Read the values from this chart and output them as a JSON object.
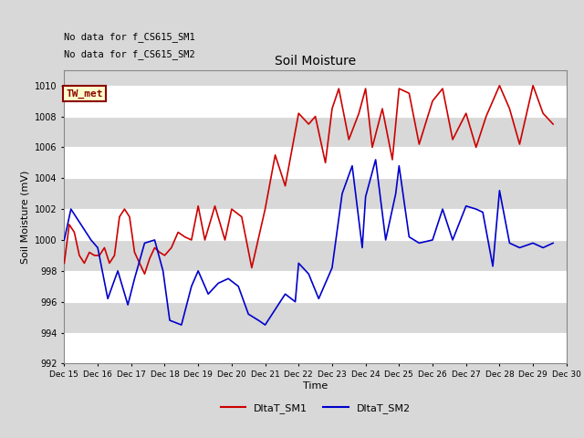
{
  "title": "Soil Moisture",
  "ylabel": "Soil Moisture (mV)",
  "xlabel": "Time",
  "ylim": [
    992,
    1011
  ],
  "yticks": [
    992,
    994,
    996,
    998,
    1000,
    1002,
    1004,
    1006,
    1008,
    1010
  ],
  "bg_color": "#d8d8d8",
  "plot_bg_color": "#d8d8d8",
  "grid_color": "white",
  "note1": "No data for f_CS615_SM1",
  "note2": "No data for f_CS615_SM2",
  "legend_box_label": "TW_met",
  "legend_box_color": "#ffffcc",
  "legend_box_border": "#8b0000",
  "sm1_color": "#cc0000",
  "sm2_color": "#0000cc",
  "sm1_x": [
    15.0,
    15.15,
    15.3,
    15.45,
    15.6,
    15.75,
    15.9,
    16.05,
    16.2,
    16.35,
    16.5,
    16.65,
    16.8,
    16.95,
    17.1,
    17.25,
    17.4,
    17.55,
    17.7,
    17.85,
    18.0,
    18.2,
    18.4,
    18.6,
    18.8,
    19.0,
    19.2,
    19.5,
    19.8,
    20.0,
    20.3,
    20.6,
    21.0,
    21.3,
    21.6,
    22.0,
    22.3,
    22.5,
    22.8,
    23.0,
    23.2,
    23.5,
    23.8,
    24.0,
    24.2,
    24.5,
    24.8,
    25.0,
    25.3,
    25.6,
    26.0,
    26.3,
    26.6,
    27.0,
    27.3,
    27.6,
    28.0,
    28.3,
    28.6,
    29.0,
    29.3,
    29.6
  ],
  "sm1_y": [
    998.5,
    1001.0,
    1000.5,
    999.0,
    998.5,
    999.2,
    999.0,
    999.0,
    999.5,
    998.5,
    999.0,
    1001.5,
    1002.0,
    1001.5,
    999.2,
    998.5,
    997.8,
    998.8,
    999.5,
    999.2,
    999.0,
    999.5,
    1000.5,
    1000.2,
    1000.0,
    1002.2,
    1000.0,
    1002.2,
    1000.0,
    1002.0,
    1001.5,
    998.2,
    1002.0,
    1005.5,
    1003.5,
    1008.2,
    1007.5,
    1008.0,
    1005.0,
    1008.5,
    1009.8,
    1006.5,
    1008.2,
    1009.8,
    1006.0,
    1008.5,
    1005.2,
    1009.8,
    1009.5,
    1006.2,
    1009.0,
    1009.8,
    1006.5,
    1008.2,
    1006.0,
    1008.0,
    1010.0,
    1008.5,
    1006.2,
    1010.0,
    1008.2,
    1007.5
  ],
  "sm2_x": [
    15.0,
    15.2,
    15.5,
    15.8,
    16.0,
    16.3,
    16.6,
    16.9,
    17.1,
    17.4,
    17.7,
    17.95,
    18.15,
    18.5,
    18.8,
    19.0,
    19.3,
    19.6,
    19.9,
    20.2,
    20.5,
    20.8,
    21.0,
    21.3,
    21.6,
    21.9,
    22.0,
    22.3,
    22.6,
    23.0,
    23.3,
    23.6,
    23.9,
    24.0,
    24.3,
    24.6,
    24.9,
    25.0,
    25.3,
    25.6,
    26.0,
    26.3,
    26.6,
    27.0,
    27.3,
    27.5,
    27.8,
    28.0,
    28.3,
    28.6,
    29.0,
    29.3,
    29.6
  ],
  "sm2_y": [
    1000.0,
    1002.0,
    1001.0,
    1000.0,
    999.5,
    996.2,
    998.0,
    995.8,
    997.5,
    999.8,
    1000.0,
    998.0,
    994.8,
    994.5,
    997.0,
    998.0,
    996.5,
    997.2,
    997.5,
    997.0,
    995.2,
    994.8,
    994.5,
    995.5,
    996.5,
    996.0,
    998.5,
    997.8,
    996.2,
    998.2,
    1003.0,
    1004.8,
    999.5,
    1002.8,
    1005.2,
    1000.0,
    1003.0,
    1004.8,
    1000.2,
    999.8,
    1000.0,
    1002.0,
    1000.0,
    1002.2,
    1002.0,
    1001.8,
    998.3,
    1003.2,
    999.8,
    999.5,
    999.8,
    999.5,
    999.8
  ]
}
